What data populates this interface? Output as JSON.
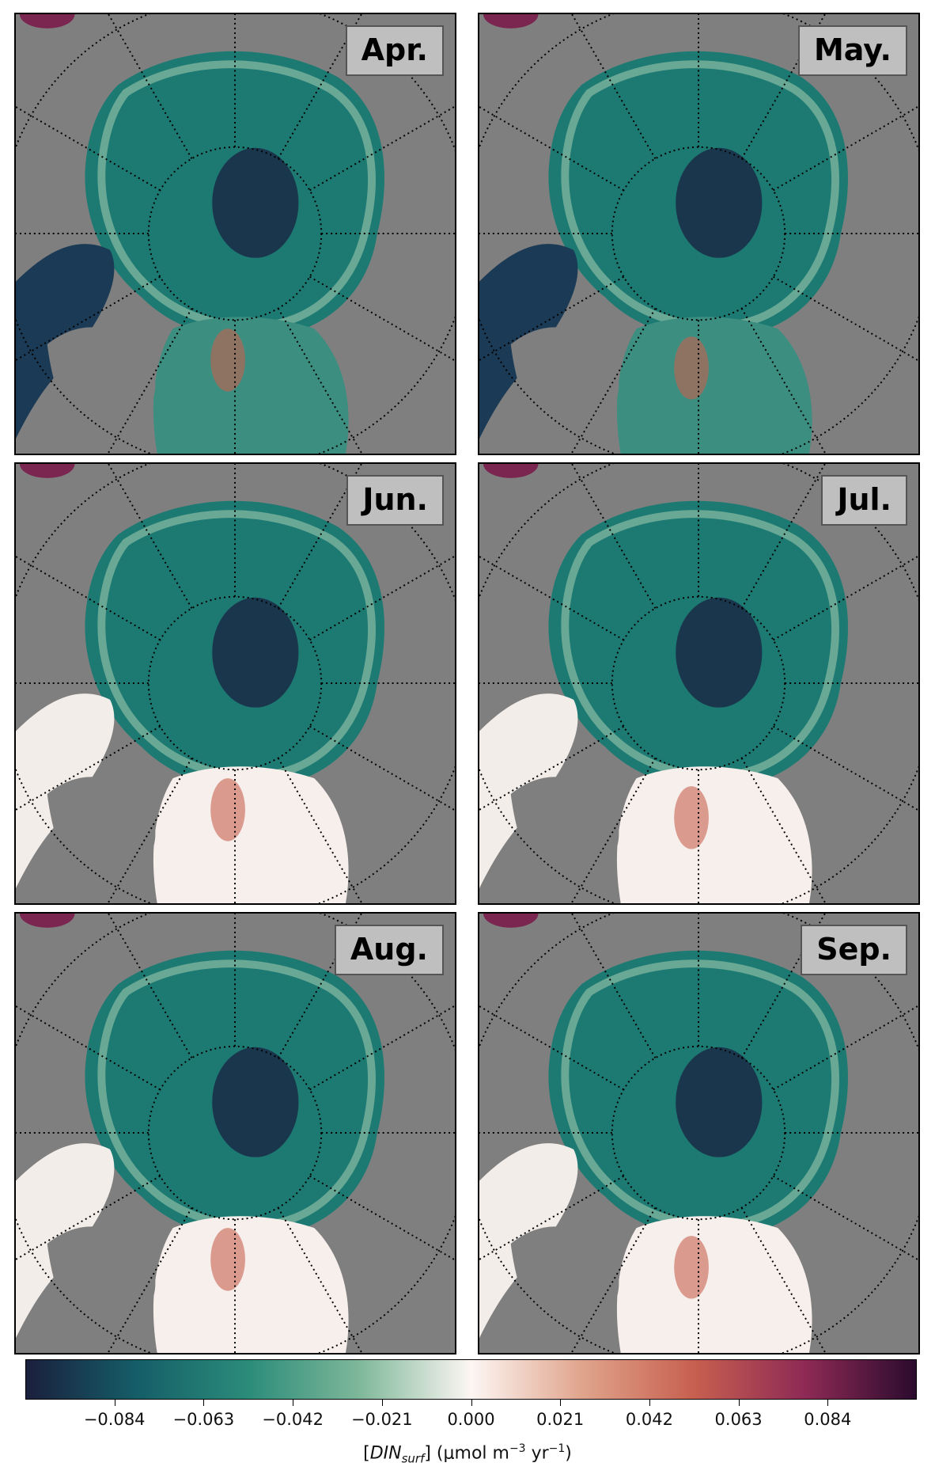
{
  "chart_data": {
    "type": "heatmap",
    "panels": [
      {
        "label": "Apr."
      },
      {
        "label": "May."
      },
      {
        "label": "Jun."
      },
      {
        "label": "Jul."
      },
      {
        "label": "Aug."
      },
      {
        "label": "Sep."
      }
    ],
    "colorbar": {
      "ticks": [
        -0.084,
        -0.063,
        -0.042,
        -0.021,
        0.0,
        0.021,
        0.042,
        0.063,
        0.084
      ],
      "tick_labels": [
        "−0.084",
        "−0.063",
        "−0.042",
        "−0.021",
        "0.000",
        "0.021",
        "0.042",
        "0.063",
        "0.084"
      ],
      "range": [
        -0.105,
        0.105
      ],
      "colormap": [
        "#1a1f3d",
        "#155e68",
        "#2b8c7a",
        "#7fb89a",
        "#fdf6f3",
        "#e0a48c",
        "#c7604f",
        "#8e2a55",
        "#2b0b2e"
      ],
      "label_main": "[",
      "label_var": "DIN",
      "label_sub": "surf",
      "label_units": "] (μmol m",
      "label_exp1": "−3",
      "label_mid": " yr",
      "label_exp2": "−1",
      "label_end": ")"
    },
    "colors": {
      "land": "#7f7f7f",
      "ocean_negative": "#1d7a72",
      "ocean_zero": "#fdf6f3",
      "ocean_positive": "#c7604f"
    }
  }
}
